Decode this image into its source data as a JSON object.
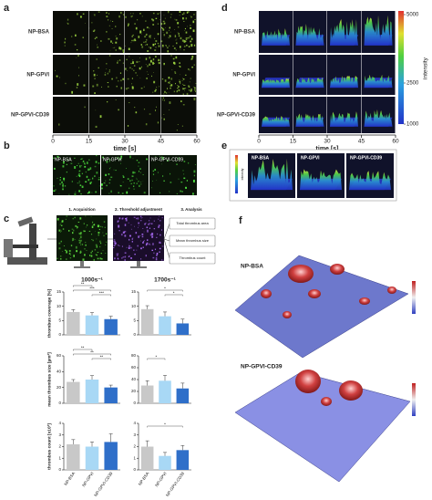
{
  "panels": {
    "a": {
      "letter": "a",
      "rows": [
        "NP-BSA",
        "NP-GPVI",
        "NP-GPVI-CD39"
      ],
      "time_ticks": [
        0,
        15,
        30,
        45,
        60
      ],
      "time_label": "time [s]"
    },
    "b": {
      "letter": "b",
      "tiles": [
        "NP-BSA",
        "NP-GPVI",
        "NP-GPVI-CD39"
      ]
    },
    "c": {
      "letter": "c",
      "steps": [
        "1. Acquisition",
        "2. Threshold adjustment",
        "3. Analysis"
      ],
      "outputs": [
        "Total thrombus area",
        "Mean thrombus size",
        "Thrombus count"
      ]
    },
    "d": {
      "letter": "d",
      "rows": [
        "NP-BSA",
        "NP-GPVI",
        "NP-GPVI-CD39"
      ],
      "time_ticks": [
        0,
        15,
        30,
        45,
        60
      ],
      "time_label": "time [s]",
      "colorbar_ticks": [
        5000,
        2500,
        1000
      ],
      "colorbar_label": "intensity"
    },
    "e": {
      "letter": "e",
      "tiles": [
        "NP-BSA",
        "NP-GPVI",
        "NP-GPVI-CD39"
      ],
      "colorbar_label": "intensity"
    },
    "f": {
      "letter": "f",
      "plots": [
        "NP-BSA",
        "NP-GPVI-CD39"
      ]
    }
  },
  "chart_data": [
    {
      "type": "bar",
      "title": "1000s⁻¹",
      "ylabel": "thrombus coverage [%]",
      "values": [
        8,
        6.8,
        5.5
      ],
      "errors": [
        0.8,
        1.0,
        1.0
      ],
      "colors": [
        "#c8c8c8",
        "#a8d8f5",
        "#2f6fc9"
      ],
      "ylim": [
        0,
        15
      ],
      "yticks": [
        0,
        5,
        10,
        15
      ],
      "annotations": [
        {
          "text": "***",
          "pair": [
            1,
            2
          ]
        },
        {
          "text": "***",
          "pair": [
            0,
            2
          ]
        },
        {
          "text": "**",
          "pair": [
            0,
            1
          ]
        }
      ]
    },
    {
      "type": "bar",
      "title": "1700s⁻¹",
      "values": [
        9,
        6.5,
        4
      ],
      "errors": [
        1.2,
        1.5,
        1.5
      ],
      "colors": [
        "#c8c8c8",
        "#a8d8f5",
        "#2f6fc9"
      ],
      "ylim": [
        0,
        15
      ],
      "yticks": [
        0,
        5,
        10,
        15
      ],
      "annotations": [
        {
          "text": "*",
          "pair": [
            1,
            2
          ]
        },
        {
          "text": "*",
          "pair": [
            0,
            2
          ]
        }
      ]
    },
    {
      "type": "bar",
      "ylabel": "mean thrombus size [µm²]",
      "values": [
        27,
        30,
        20
      ],
      "errors": [
        3,
        5,
        3
      ],
      "colors": [
        "#c8c8c8",
        "#a8d8f5",
        "#2f6fc9"
      ],
      "ylim": [
        0,
        60
      ],
      "yticks": [
        0,
        20,
        40,
        60
      ],
      "annotations": [
        {
          "text": "**",
          "pair": [
            1,
            2
          ]
        },
        {
          "text": "**",
          "pair": [
            0,
            2
          ]
        },
        {
          "text": "**",
          "pair": [
            0,
            1
          ]
        }
      ]
    },
    {
      "type": "bar",
      "values": [
        30,
        38,
        25
      ],
      "errors": [
        8,
        9,
        9
      ],
      "colors": [
        "#c8c8c8",
        "#a8d8f5",
        "#2f6fc9"
      ],
      "ylim": [
        0,
        80
      ],
      "yticks": [
        0,
        20,
        40,
        60,
        80
      ],
      "annotations": [
        {
          "text": "*",
          "pair": [
            0,
            1
          ]
        }
      ]
    },
    {
      "type": "bar",
      "ylabel": "thrombus count [x10³]",
      "categories": [
        "NP-BSA",
        "NP-GPVI",
        "NP-GPVI-CD39"
      ],
      "values": [
        2.2,
        2.0,
        2.4
      ],
      "errors": [
        0.4,
        0.4,
        0.7
      ],
      "colors": [
        "#c8c8c8",
        "#a8d8f5",
        "#2f6fc9"
      ],
      "ylim": [
        0,
        4
      ],
      "yticks": [
        0,
        1,
        2,
        3,
        4
      ],
      "annotations": []
    },
    {
      "type": "bar",
      "categories": [
        "NP-BSA",
        "NP-GPVI",
        "NP-GPVI-CD39"
      ],
      "values": [
        2.0,
        1.2,
        1.7
      ],
      "errors": [
        0.5,
        0.3,
        0.4
      ],
      "colors": [
        "#c8c8c8",
        "#a8d8f5",
        "#2f6fc9"
      ],
      "ylim": [
        0,
        4
      ],
      "yticks": [
        0,
        1,
        2,
        3,
        4
      ],
      "annotations": [
        {
          "text": "*",
          "pair": [
            0,
            2
          ]
        }
      ]
    }
  ]
}
